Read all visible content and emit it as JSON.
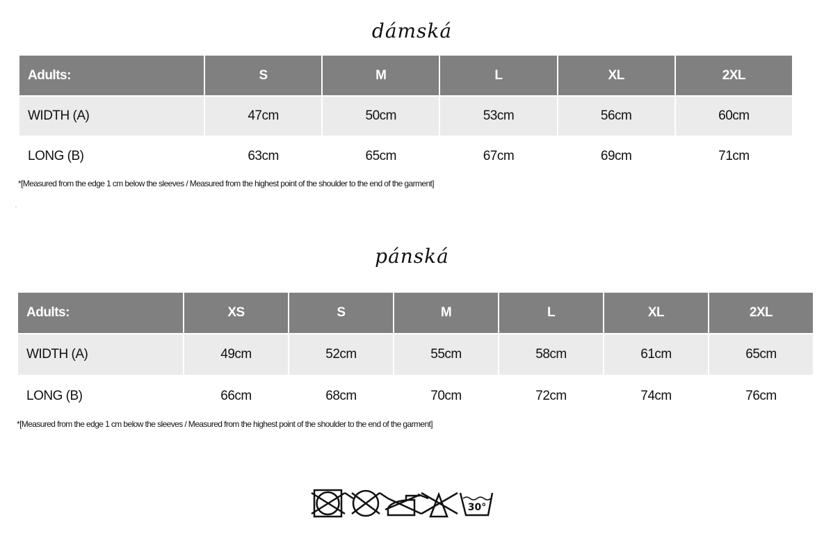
{
  "women": {
    "title": "dámská",
    "headers": [
      "Adults:",
      "S",
      "M",
      "L",
      "XL",
      "2XL"
    ],
    "rows": [
      {
        "label": "WIDTH (A)",
        "values": [
          "47cm",
          "50cm",
          "53cm",
          "56cm",
          "60cm"
        ]
      },
      {
        "label": "LONG (B)",
        "values": [
          "63cm",
          "65cm",
          "67cm",
          "69cm",
          "71cm"
        ]
      }
    ],
    "note": "*[Measured from the edge 1 cm below the sleeves / Measured from the highest point of the shoulder to the end of the garment]"
  },
  "men": {
    "title": "pánská",
    "headers": [
      "Adults:",
      "XS",
      "S",
      "M",
      "L",
      "XL",
      "2XL"
    ],
    "rows": [
      {
        "label": "WIDTH (A)",
        "values": [
          "49cm",
          "52cm",
          "55cm",
          "58cm",
          "61cm",
          "65cm"
        ]
      },
      {
        "label": "LONG (B)",
        "values": [
          "66cm",
          "68cm",
          "70cm",
          "72cm",
          "74cm",
          "76cm"
        ]
      }
    ],
    "note": "*[Measured from the edge 1 cm below the sleeves / Measured from the highest point of the shoulder to the end of the garment]"
  },
  "care": {
    "icons": [
      "no-tumble-dry-icon",
      "no-dry-clean-icon",
      "no-iron-icon",
      "no-bleach-icon",
      "wash-30-icon"
    ],
    "wash_temp": "30°"
  },
  "colors": {
    "header": "#808080",
    "row_alt": "#ebebeb"
  }
}
